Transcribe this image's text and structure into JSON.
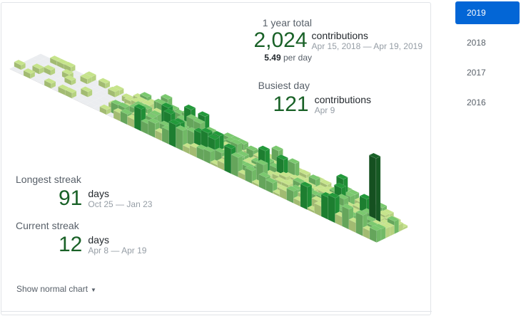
{
  "summary": {
    "title": "1 year total",
    "count": "2,024",
    "unit": "contributions",
    "range": "Apr 15, 2018 — Apr 19, 2019",
    "per_day_value": "5.49",
    "per_day_label": "per day"
  },
  "busiest": {
    "title": "Busiest day",
    "count": "121",
    "unit": "contributions",
    "date": "Apr 9"
  },
  "longest_streak": {
    "title": "Longest streak",
    "count": "91",
    "unit": "days",
    "range": "Oct 25 — Jan 23"
  },
  "current_streak": {
    "title": "Current streak",
    "count": "12",
    "unit": "days",
    "range": "Apr 8 — Apr 19"
  },
  "toggle": {
    "label": "Show normal chart",
    "icon": "caret-down-icon"
  },
  "years": [
    "2019",
    "2018",
    "2017",
    "2016"
  ],
  "selected_year": "2019",
  "colors": {
    "accent": "#0366d6",
    "level0": "#ebedf0",
    "level1": "#c6e48b",
    "level2": "#7bc96f",
    "level3": "#239a3b",
    "level4": "#196127"
  },
  "chart_data": {
    "type": "heatmap",
    "weeks": 53,
    "days_per_week": 7,
    "busiest_day_value": 121
  }
}
